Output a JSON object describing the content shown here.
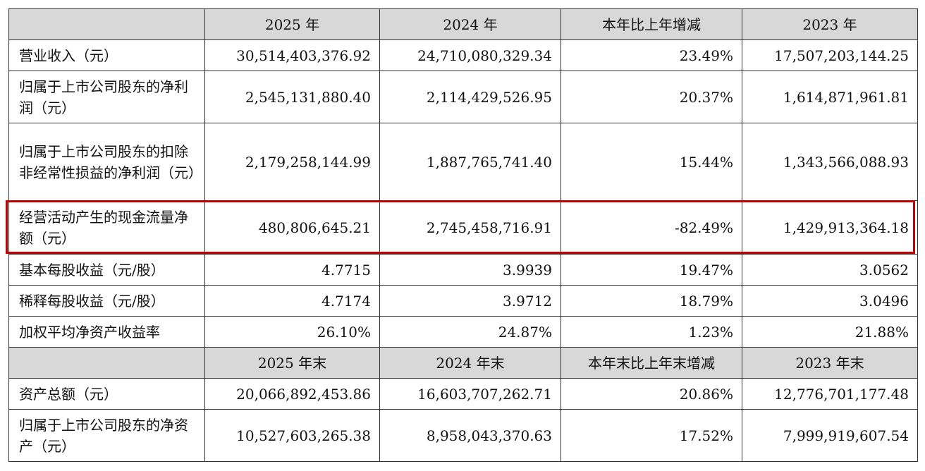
{
  "header1": [
    "",
    "2025 年",
    "2024 年",
    "本年比上年增减",
    "2023 年"
  ],
  "header2": [
    "",
    "2025 年末",
    "2024 年末",
    "本年末比上年末增减",
    "2023 年末"
  ],
  "rows1": [
    {
      "label": "营业收入（元）",
      "v2025": "30,514,403,376.92",
      "v2024": "24,710,080,329.34",
      "change": "23.49%",
      "v2023": "17,507,203,144.25"
    },
    {
      "label": "归属于上市公司股东的净利润（元）",
      "v2025": "2,545,131,880.40",
      "v2024": "2,114,429,526.95",
      "change": "20.37%",
      "v2023": "1,614,871,961.81"
    },
    {
      "label": "归属于上市公司股东的扣除非经常性损益的净利润（元）",
      "v2025": "2,179,258,144.99",
      "v2024": "1,887,765,741.40",
      "change": "15.44%",
      "v2023": "1,343,566,088.93"
    },
    {
      "label": "经营活动产生的现金流量净额（元）",
      "v2025": "480,806,645.21",
      "v2024": "2,745,458,716.91",
      "change": "-82.49%",
      "v2023": "1,429,913,364.18"
    },
    {
      "label": "基本每股收益（元/股）",
      "v2025": "4.7715",
      "v2024": "3.9939",
      "change": "19.47%",
      "v2023": "3.0562"
    },
    {
      "label": "稀释每股收益（元/股）",
      "v2025": "4.7174",
      "v2024": "3.9712",
      "change": "18.79%",
      "v2023": "3.0496"
    },
    {
      "label": "加权平均净资产收益率",
      "v2025": "26.10%",
      "v2024": "24.87%",
      "change": "1.23%",
      "v2023": "21.88%"
    }
  ],
  "rows2": [
    {
      "label": "资产总额（元）",
      "v2025": "20,066,892,453.86",
      "v2024": "16,603,707,262.71",
      "change": "20.86%",
      "v2023": "12,776,701,177.48"
    },
    {
      "label": "归属于上市公司股东的净资产（元）",
      "v2025": "10,527,603,265.38",
      "v2024": "8,958,043,370.63",
      "change": "17.52%",
      "v2023": "7,999,919,607.54"
    }
  ],
  "highlight_color": "#c00000"
}
